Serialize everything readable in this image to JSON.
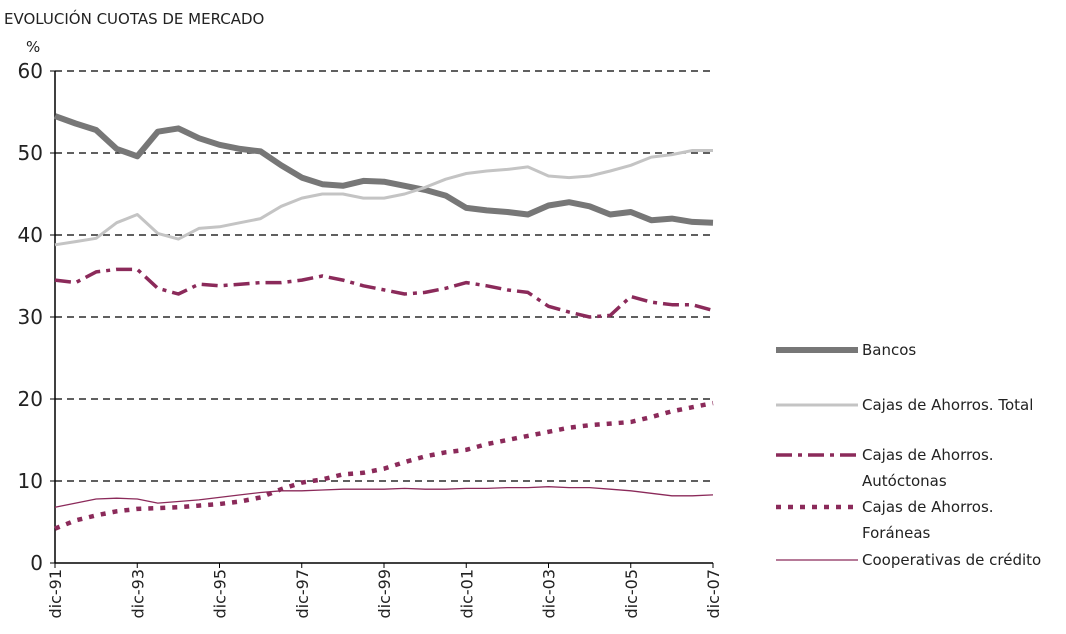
{
  "chart_data": {
    "type": "line",
    "title": "EVOLUCIÓN CUOTAS DE MERCADO",
    "y_label": "%",
    "categories": [
      "dic-91",
      null,
      null,
      null,
      "dic-93",
      null,
      null,
      null,
      "dic-95",
      null,
      null,
      null,
      "dic-97",
      null,
      null,
      null,
      "dic-99",
      null,
      null,
      null,
      "dic-01",
      null,
      null,
      null,
      "dic-03",
      null,
      null,
      null,
      "dic-05",
      null,
      null,
      null,
      "dic-07"
    ],
    "ylim": [
      0,
      60
    ],
    "yticks": [
      0,
      10,
      20,
      30,
      40,
      50,
      60
    ],
    "grid": true,
    "legend": "right",
    "series": [
      {
        "name": "Bancos",
        "color": "#777777",
        "style": "thick",
        "values": [
          54.5,
          53.6,
          52.8,
          50.5,
          49.6,
          52.6,
          53.0,
          51.8,
          51.0,
          50.5,
          50.2,
          48.5,
          47.0,
          46.2,
          46.0,
          46.6,
          46.5,
          46.0,
          45.5,
          44.8,
          43.3,
          43.0,
          42.8,
          42.5,
          43.6,
          44.0,
          43.5,
          42.5,
          42.8,
          41.8,
          42.0,
          41.6,
          41.5
        ]
      },
      {
        "name": "Cajas de Ahorros. Total",
        "color": "#c4c4c4",
        "style": "solid",
        "values": [
          38.8,
          39.2,
          39.6,
          41.5,
          42.5,
          40.2,
          39.5,
          40.8,
          41.0,
          41.5,
          42.0,
          43.5,
          44.5,
          45.0,
          45.0,
          44.5,
          44.5,
          45.0,
          45.8,
          46.8,
          47.5,
          47.8,
          48.0,
          48.3,
          47.2,
          47.0,
          47.2,
          47.8,
          48.5,
          49.5,
          49.8,
          50.3,
          50.3
        ]
      },
      {
        "name": "Cajas de Ahorros. Autóctonas",
        "color": "#8b2a5a",
        "style": "dash-dot",
        "values": [
          34.5,
          34.2,
          35.5,
          35.8,
          35.8,
          33.5,
          32.8,
          34.0,
          33.8,
          34.0,
          34.2,
          34.2,
          34.5,
          35.0,
          34.5,
          33.8,
          33.3,
          32.8,
          33.0,
          33.5,
          34.2,
          33.8,
          33.3,
          33.0,
          31.3,
          30.6,
          30.0,
          30.2,
          32.5,
          31.8,
          31.5,
          31.5,
          30.8
        ]
      },
      {
        "name": "Cajas de Ahorros. Foráneas",
        "color": "#8b2a5a",
        "style": "dotted",
        "values": [
          4.2,
          5.2,
          5.8,
          6.3,
          6.6,
          6.7,
          6.8,
          7.0,
          7.2,
          7.5,
          8.0,
          9.0,
          9.8,
          10.2,
          10.8,
          11.0,
          11.5,
          12.3,
          13.0,
          13.5,
          13.8,
          14.5,
          15.0,
          15.5,
          16.0,
          16.5,
          16.8,
          17.0,
          17.2,
          17.8,
          18.5,
          19.0,
          19.5
        ]
      },
      {
        "name": "Cooperativas de crédito",
        "color": "#8b2a5a",
        "style": "thin",
        "values": [
          6.8,
          7.3,
          7.8,
          7.9,
          7.8,
          7.3,
          7.5,
          7.7,
          8.0,
          8.3,
          8.6,
          8.8,
          8.8,
          8.9,
          9.0,
          9.0,
          9.0,
          9.1,
          9.0,
          9.0,
          9.1,
          9.1,
          9.2,
          9.2,
          9.3,
          9.2,
          9.2,
          9.0,
          8.8,
          8.5,
          8.2,
          8.2,
          8.3
        ]
      }
    ]
  }
}
